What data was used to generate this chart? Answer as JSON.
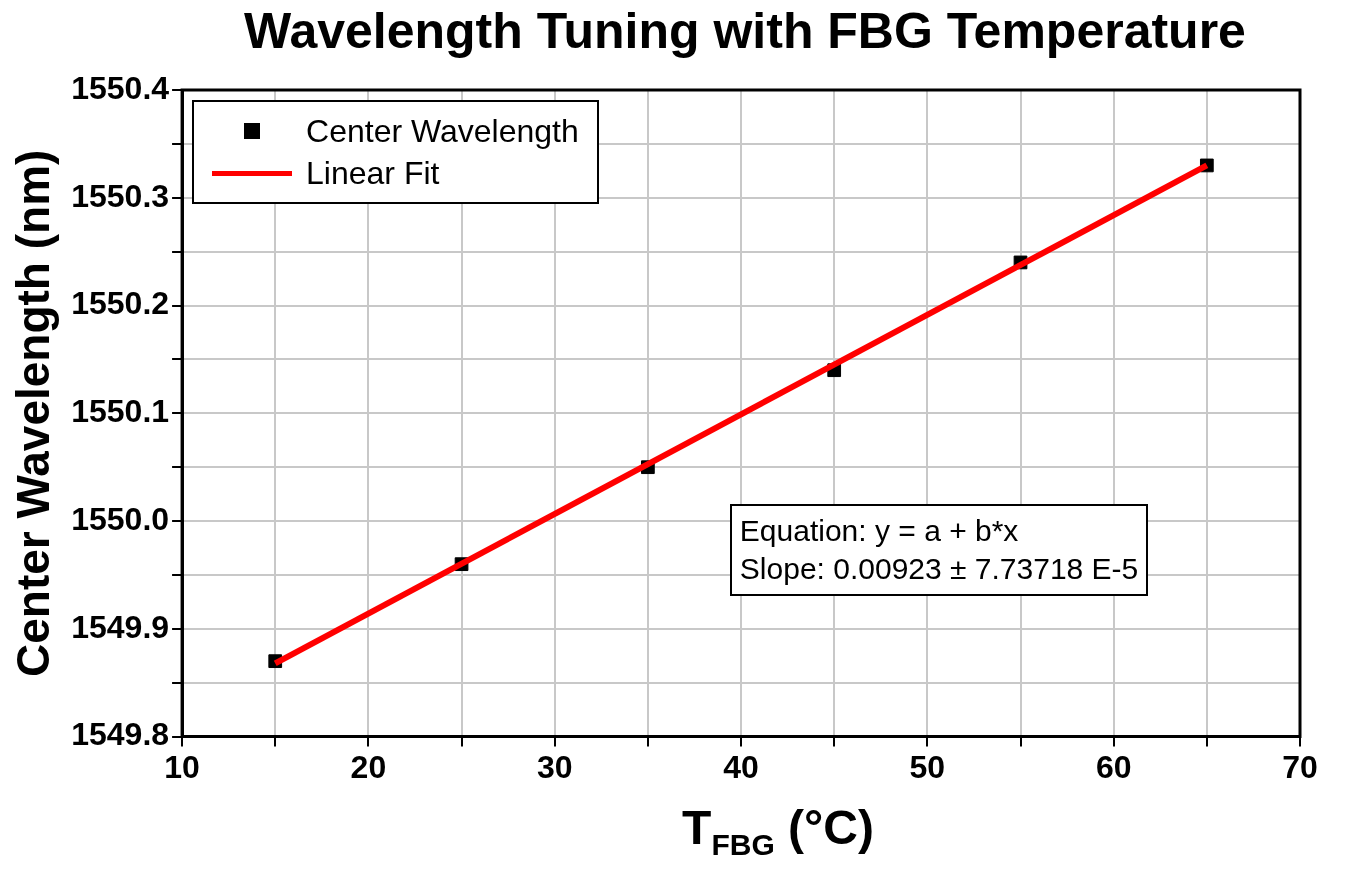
{
  "chart_data": {
    "type": "scatter",
    "title": "Wavelength Tuning with FBG Temperature",
    "xlabel": "T$_{FBG}$ (°C)",
    "ylabel": "Center Wavelength (nm)",
    "annotations": [
      "Equation: y = a + b*x",
      "Slope: 0.00923 ± 7.73718 E-5"
    ],
    "x": [
      15,
      25,
      35,
      45,
      55,
      65
    ],
    "series": [
      {
        "name": "Center Wavelength",
        "type": "scatter",
        "color": "#000000",
        "marker": "square",
        "values": [
          1549.87,
          1549.96,
          1550.05,
          1550.14,
          1550.24,
          1550.33
        ]
      },
      {
        "name": "Linear Fit",
        "type": "line",
        "color": "#ff0000",
        "marker": "none",
        "x": [
          15,
          65
        ],
        "values": [
          1549.868,
          1550.33
        ]
      }
    ],
    "xlim": [
      10,
      70
    ],
    "xticks": [
      10,
      {
        "value": 15,
        "label": null
      },
      20,
      {
        "value": 25,
        "label": null
      },
      30,
      {
        "value": 35,
        "label": null
      },
      40,
      {
        "value": 45,
        "label": null
      },
      50,
      {
        "value": 55,
        "label": null
      },
      60,
      {
        "value": 65,
        "label": null
      },
      70
    ],
    "ylim": [
      1549.8,
      1550.4
    ],
    "yticks": [
      {
        "value": 1549.8,
        "label": "1549.8"
      },
      {
        "value": 1549.85,
        "label": null
      },
      {
        "value": 1549.9,
        "label": "1549.9"
      },
      {
        "value": 1549.95,
        "label": null
      },
      {
        "value": 1550.0,
        "label": "1550.0"
      },
      {
        "value": 1550.05,
        "label": null
      },
      {
        "value": 1550.1,
        "label": "1550.1"
      },
      {
        "value": 1550.15,
        "label": null
      },
      {
        "value": 1550.2,
        "label": "1550.2"
      },
      {
        "value": 1550.25,
        "label": null
      },
      {
        "value": 1550.3,
        "label": "1550.3"
      },
      {
        "value": 1550.35,
        "label": null
      },
      {
        "value": 1550.4,
        "label": "1550.4"
      }
    ],
    "grid": true,
    "legend": "top left"
  }
}
